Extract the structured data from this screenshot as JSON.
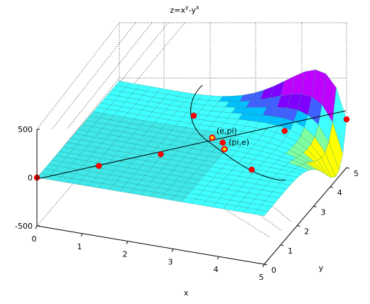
{
  "figure": {
    "title_base": "z=x",
    "title_sup1": "y",
    "title_mid": "-y",
    "title_sup2": "x"
  },
  "chart_data": {
    "type": "surface",
    "function": "z = x^y - y^x",
    "title": "z=x^y-y^x",
    "xlabel": "x",
    "ylabel": "y",
    "zlabel": "",
    "xlim": [
      0,
      5
    ],
    "ylim": [
      0,
      5
    ],
    "zlim": [
      -500,
      500
    ],
    "x_ticks": [
      "0",
      "1",
      "2",
      "3",
      "4",
      "5"
    ],
    "y_ticks": [
      "0",
      "1",
      "2",
      "3",
      "4",
      "5"
    ],
    "z_ticks": [
      "-500",
      "0",
      "500"
    ],
    "grid": true,
    "colormap": [
      "#00ffff",
      "#40ffff",
      "#80ffa0",
      "#ffff00",
      "#00c0ff",
      "#4060ff",
      "#8000ff",
      "#c000ff"
    ],
    "flat_color": "#40e8e8",
    "curves": [
      {
        "name": "",
        "kind": "diagonal",
        "x": [
          0,
          5
        ],
        "y": [
          0,
          5
        ],
        "z": [
          0,
          0
        ]
      },
      {
        "name": "",
        "kind": "xy-curve",
        "points": [
          [
            1.9,
            4.8
          ],
          [
            2.1,
            4.0
          ],
          [
            2.4,
            3.4
          ],
          [
            2.718,
            3.1416
          ],
          [
            3.1416,
            2.718
          ],
          [
            3.5,
            2.6
          ],
          [
            4.0,
            2.3
          ],
          [
            4.8,
            2.1
          ]
        ]
      }
    ],
    "points": [
      {
        "label": "",
        "x": 0,
        "y": 0,
        "z": 0
      },
      {
        "label": "",
        "x": 1,
        "y": 1,
        "z": 0
      },
      {
        "label": "",
        "x": 2,
        "y": 2,
        "z": 0
      },
      {
        "label": "",
        "x": 2,
        "y": 4,
        "z": 0
      },
      {
        "label": "",
        "x": 3,
        "y": 3,
        "z": 0
      },
      {
        "label": "",
        "x": 4,
        "y": 2,
        "z": 0
      },
      {
        "label": "",
        "x": 4,
        "y": 4,
        "z": 0
      },
      {
        "label": "",
        "x": 5,
        "y": 5,
        "z": 0
      }
    ],
    "annotations": [
      {
        "text": "(e,pi)",
        "x": 2.718,
        "y": 3.1416,
        "z": 0
      },
      {
        "text": "(pi,e)",
        "x": 3.1416,
        "y": 2.718,
        "z": 0
      }
    ]
  }
}
